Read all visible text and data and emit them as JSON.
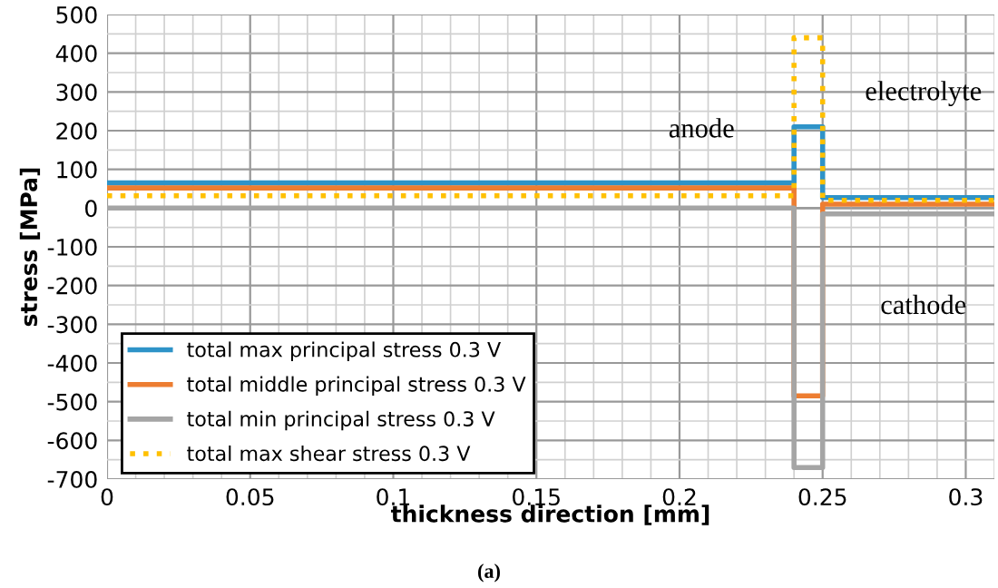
{
  "chart_data": {
    "type": "line",
    "xlabel": "thickness direction [mm]",
    "ylabel": "stress [MPa]",
    "xlim": [
      0,
      0.31
    ],
    "xticks": [
      0,
      0.05,
      0.1,
      0.15,
      0.2,
      0.25,
      0.3
    ],
    "ylim": [
      -700,
      500
    ],
    "yticks": [
      -700,
      -600,
      -500,
      -400,
      -300,
      -200,
      -100,
      0,
      100,
      200,
      300,
      400,
      500
    ],
    "grid": true,
    "legend": "bottom left",
    "annotations": [
      "anode",
      "electrolyte",
      "cathode",
      "(a)"
    ],
    "series": [
      {
        "name": "total max principal stress 0.3 V",
        "color": "#2e93c8",
        "line_style": "solid",
        "x": [
          0,
          0.24,
          0.24,
          0.25,
          0.25,
          0.31
        ],
        "values": [
          65,
          65,
          210,
          210,
          27,
          27
        ]
      },
      {
        "name": "total middle principal stress 0.3 V",
        "color": "#ed7d31",
        "line_style": "solid",
        "x": [
          0,
          0.24,
          0.24,
          0.25,
          0.25,
          0.31
        ],
        "values": [
          52,
          52,
          -485,
          -485,
          10,
          10
        ]
      },
      {
        "name": "total min principal stress 0.3 V",
        "color": "#a5a5a5",
        "line_style": "solid",
        "x": [
          0,
          0.24,
          0.24,
          0.25,
          0.25,
          0.31
        ],
        "values": [
          0,
          0,
          -670,
          -670,
          -15,
          -15
        ]
      },
      {
        "name": "total max shear stress 0.3 V",
        "color": "#ffc000",
        "line_style": "dotted",
        "x": [
          0,
          0.24,
          0.24,
          0.25,
          0.25,
          0.31
        ],
        "values": [
          32,
          32,
          440,
          440,
          20,
          20
        ]
      }
    ]
  }
}
